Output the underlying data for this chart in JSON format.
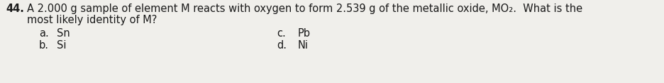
{
  "question_number": "44.",
  "line1": "A 2.000 g sample of element M reacts with oxygen to form 2.539 g of the metallic oxide, MO₂.  What is the",
  "line2": "most likely identity of M?",
  "option_a_label": "a.",
  "option_a": "Sn",
  "option_b_label": "b.",
  "option_b": "Si",
  "option_c_label": "c.",
  "option_c": "Pb",
  "option_d_label": "d.",
  "option_d": "Ni",
  "font_size": 10.5,
  "font_color": "#1a1a1a",
  "background_color": "#f0efeb"
}
